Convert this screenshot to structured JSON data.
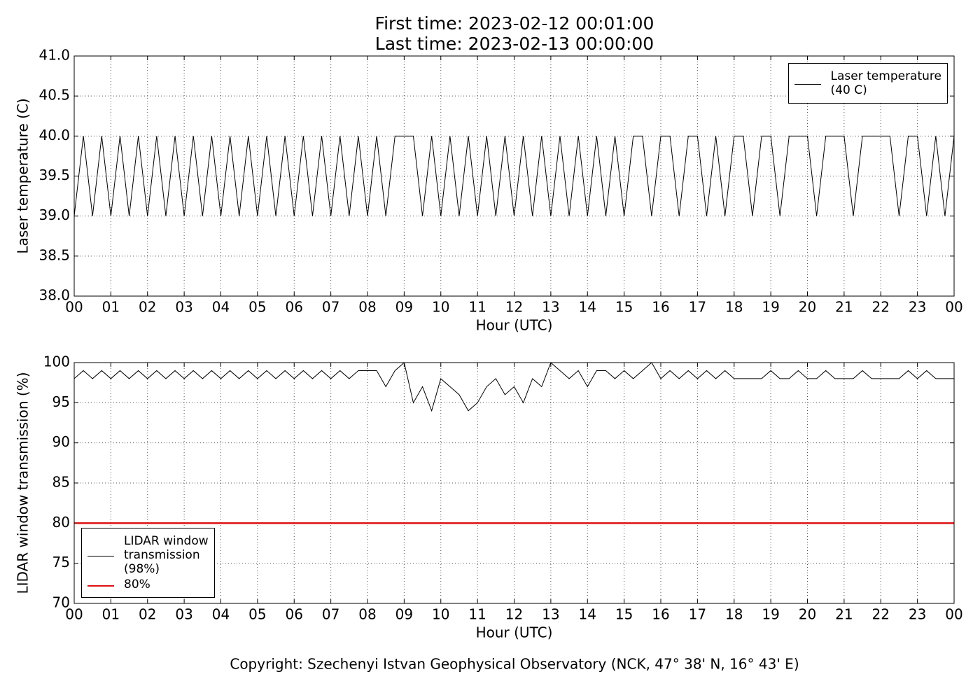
{
  "title_lines": [
    "First time: 2023-02-12 00:01:00",
    "Last time: 2023-02-13 00:00:00"
  ],
  "footer": "Copyright: Szechenyi Istvan Geophysical Observatory (NCK, 47° 38' N, 16° 43' E)",
  "chart_data": [
    {
      "type": "line",
      "xlabel": "Hour (UTC)",
      "ylabel": "Laser temperature (C)",
      "xlim": [
        0,
        24
      ],
      "ylim": [
        38,
        41
      ],
      "grid": true,
      "legend": "upper right",
      "xticks": [
        {
          "value": 0,
          "label": "00"
        },
        {
          "value": 1,
          "label": "01"
        },
        {
          "value": 2,
          "label": "02"
        },
        {
          "value": 3,
          "label": "03"
        },
        {
          "value": 4,
          "label": "04"
        },
        {
          "value": 5,
          "label": "05"
        },
        {
          "value": 6,
          "label": "06"
        },
        {
          "value": 7,
          "label": "07"
        },
        {
          "value": 8,
          "label": "08"
        },
        {
          "value": 9,
          "label": "09"
        },
        {
          "value": 10,
          "label": "10"
        },
        {
          "value": 11,
          "label": "11"
        },
        {
          "value": 12,
          "label": "12"
        },
        {
          "value": 13,
          "label": "13"
        },
        {
          "value": 14,
          "label": "14"
        },
        {
          "value": 15,
          "label": "15"
        },
        {
          "value": 16,
          "label": "16"
        },
        {
          "value": 17,
          "label": "17"
        },
        {
          "value": 18,
          "label": "18"
        },
        {
          "value": 19,
          "label": "19"
        },
        {
          "value": 20,
          "label": "20"
        },
        {
          "value": 21,
          "label": "21"
        },
        {
          "value": 22,
          "label": "22"
        },
        {
          "value": 23,
          "label": "23"
        },
        {
          "value": 24,
          "label": "00"
        }
      ],
      "yticks": [
        {
          "value": 38,
          "label": "38.0"
        },
        {
          "value": 38.5,
          "label": "38.5"
        },
        {
          "value": 39,
          "label": "39.0"
        },
        {
          "value": 39.5,
          "label": "39.5"
        },
        {
          "value": 40,
          "label": "40.0"
        },
        {
          "value": 40.5,
          "label": "40.5"
        },
        {
          "value": 41,
          "label": "41.0"
        }
      ],
      "series": [
        {
          "name": "Laser temperature\n(40 C)",
          "color": "#000000",
          "width": 1,
          "x": [
            0,
            0.25,
            0.5,
            0.75,
            1,
            1.25,
            1.5,
            1.75,
            2,
            2.25,
            2.5,
            2.75,
            3,
            3.25,
            3.5,
            3.75,
            4,
            4.25,
            4.5,
            4.75,
            5,
            5.25,
            5.5,
            5.75,
            6,
            6.25,
            6.5,
            6.75,
            7,
            7.25,
            7.5,
            7.75,
            8,
            8.25,
            8.5,
            8.75,
            9,
            9.25,
            9.5,
            9.75,
            10,
            10.25,
            10.5,
            10.75,
            11,
            11.25,
            11.5,
            11.75,
            12,
            12.25,
            12.5,
            12.75,
            13,
            13.25,
            13.5,
            13.75,
            14,
            14.25,
            14.5,
            14.75,
            15,
            15.25,
            15.5,
            15.75,
            16,
            16.25,
            16.5,
            16.75,
            17,
            17.25,
            17.5,
            17.75,
            18,
            18.25,
            18.5,
            18.75,
            19,
            19.25,
            19.5,
            19.75,
            20,
            20.25,
            20.5,
            20.75,
            21,
            21.25,
            21.5,
            21.75,
            22,
            22.25,
            22.5,
            22.75,
            23,
            23.25,
            23.5,
            23.75,
            24
          ],
          "values": [
            39,
            40,
            39,
            40,
            39,
            40,
            39,
            40,
            39,
            40,
            39,
            40,
            39,
            40,
            39,
            40,
            39,
            40,
            39,
            40,
            39,
            40,
            39,
            40,
            39,
            40,
            39,
            40,
            39,
            40,
            39,
            40,
            39,
            40,
            39,
            40,
            40,
            40,
            39,
            40,
            39,
            40,
            39,
            40,
            39,
            40,
            39,
            40,
            39,
            40,
            39,
            40,
            39,
            40,
            39,
            40,
            39,
            40,
            39,
            40,
            39,
            40,
            40,
            39,
            40,
            40,
            39,
            40,
            40,
            39,
            40,
            39,
            40,
            40,
            39,
            40,
            40,
            39,
            40,
            40,
            40,
            39,
            40,
            40,
            40,
            39,
            40,
            40,
            40,
            40,
            39,
            40,
            40,
            39,
            40,
            39,
            40
          ]
        }
      ]
    },
    {
      "type": "line",
      "xlabel": "Hour (UTC)",
      "ylabel": "LIDAR window transmission (%)",
      "xlim": [
        0,
        24
      ],
      "ylim": [
        70,
        100
      ],
      "grid": true,
      "legend": "lower left",
      "xticks": [
        {
          "value": 0,
          "label": "00"
        },
        {
          "value": 1,
          "label": "01"
        },
        {
          "value": 2,
          "label": "02"
        },
        {
          "value": 3,
          "label": "03"
        },
        {
          "value": 4,
          "label": "04"
        },
        {
          "value": 5,
          "label": "05"
        },
        {
          "value": 6,
          "label": "06"
        },
        {
          "value": 7,
          "label": "07"
        },
        {
          "value": 8,
          "label": "08"
        },
        {
          "value": 9,
          "label": "09"
        },
        {
          "value": 10,
          "label": "10"
        },
        {
          "value": 11,
          "label": "11"
        },
        {
          "value": 12,
          "label": "12"
        },
        {
          "value": 13,
          "label": "13"
        },
        {
          "value": 14,
          "label": "14"
        },
        {
          "value": 15,
          "label": "15"
        },
        {
          "value": 16,
          "label": "16"
        },
        {
          "value": 17,
          "label": "17"
        },
        {
          "value": 18,
          "label": "18"
        },
        {
          "value": 19,
          "label": "19"
        },
        {
          "value": 20,
          "label": "20"
        },
        {
          "value": 21,
          "label": "21"
        },
        {
          "value": 22,
          "label": "22"
        },
        {
          "value": 23,
          "label": "23"
        },
        {
          "value": 24,
          "label": "00"
        }
      ],
      "yticks": [
        70,
        75,
        80,
        85,
        90,
        95,
        100
      ],
      "series": [
        {
          "name": "LIDAR window\ntransmission\n(98%)",
          "color": "#000000",
          "width": 1,
          "x": [
            0,
            0.25,
            0.5,
            0.75,
            1,
            1.25,
            1.5,
            1.75,
            2,
            2.25,
            2.5,
            2.75,
            3,
            3.25,
            3.5,
            3.75,
            4,
            4.25,
            4.5,
            4.75,
            5,
            5.25,
            5.5,
            5.75,
            6,
            6.25,
            6.5,
            6.75,
            7,
            7.25,
            7.5,
            7.75,
            8,
            8.25,
            8.5,
            8.75,
            9,
            9.25,
            9.5,
            9.75,
            10,
            10.25,
            10.5,
            10.75,
            11,
            11.25,
            11.5,
            11.75,
            12,
            12.25,
            12.5,
            12.75,
            13,
            13.25,
            13.5,
            13.75,
            14,
            14.25,
            14.5,
            14.75,
            15,
            15.25,
            15.5,
            15.75,
            16,
            16.25,
            16.5,
            16.75,
            17,
            17.25,
            17.5,
            17.75,
            18,
            18.25,
            18.5,
            18.75,
            19,
            19.25,
            19.5,
            19.75,
            20,
            20.25,
            20.5,
            20.75,
            21,
            21.25,
            21.5,
            21.75,
            22,
            22.25,
            22.5,
            22.75,
            23,
            23.25,
            23.5,
            23.75,
            24
          ],
          "values": [
            98,
            99,
            98,
            99,
            98,
            99,
            98,
            99,
            98,
            99,
            98,
            99,
            98,
            99,
            98,
            99,
            98,
            99,
            98,
            99,
            98,
            99,
            98,
            99,
            98,
            99,
            98,
            99,
            98,
            99,
            98,
            99,
            99,
            99,
            97,
            99,
            100,
            95,
            97,
            94,
            98,
            97,
            96,
            94,
            95,
            97,
            98,
            96,
            97,
            95,
            98,
            97,
            100,
            99,
            98,
            99,
            97,
            99,
            99,
            98,
            99,
            98,
            99,
            100,
            98,
            99,
            98,
            99,
            98,
            99,
            98,
            99,
            98,
            98,
            98,
            98,
            99,
            98,
            98,
            99,
            98,
            98,
            99,
            98,
            98,
            98,
            99,
            98,
            98,
            98,
            98,
            99,
            98,
            99,
            98,
            98,
            98
          ]
        },
        {
          "name": "80%",
          "color": "#dd1111",
          "width": 2.5,
          "x": [
            0,
            24
          ],
          "values": [
            80,
            80
          ]
        }
      ]
    }
  ]
}
